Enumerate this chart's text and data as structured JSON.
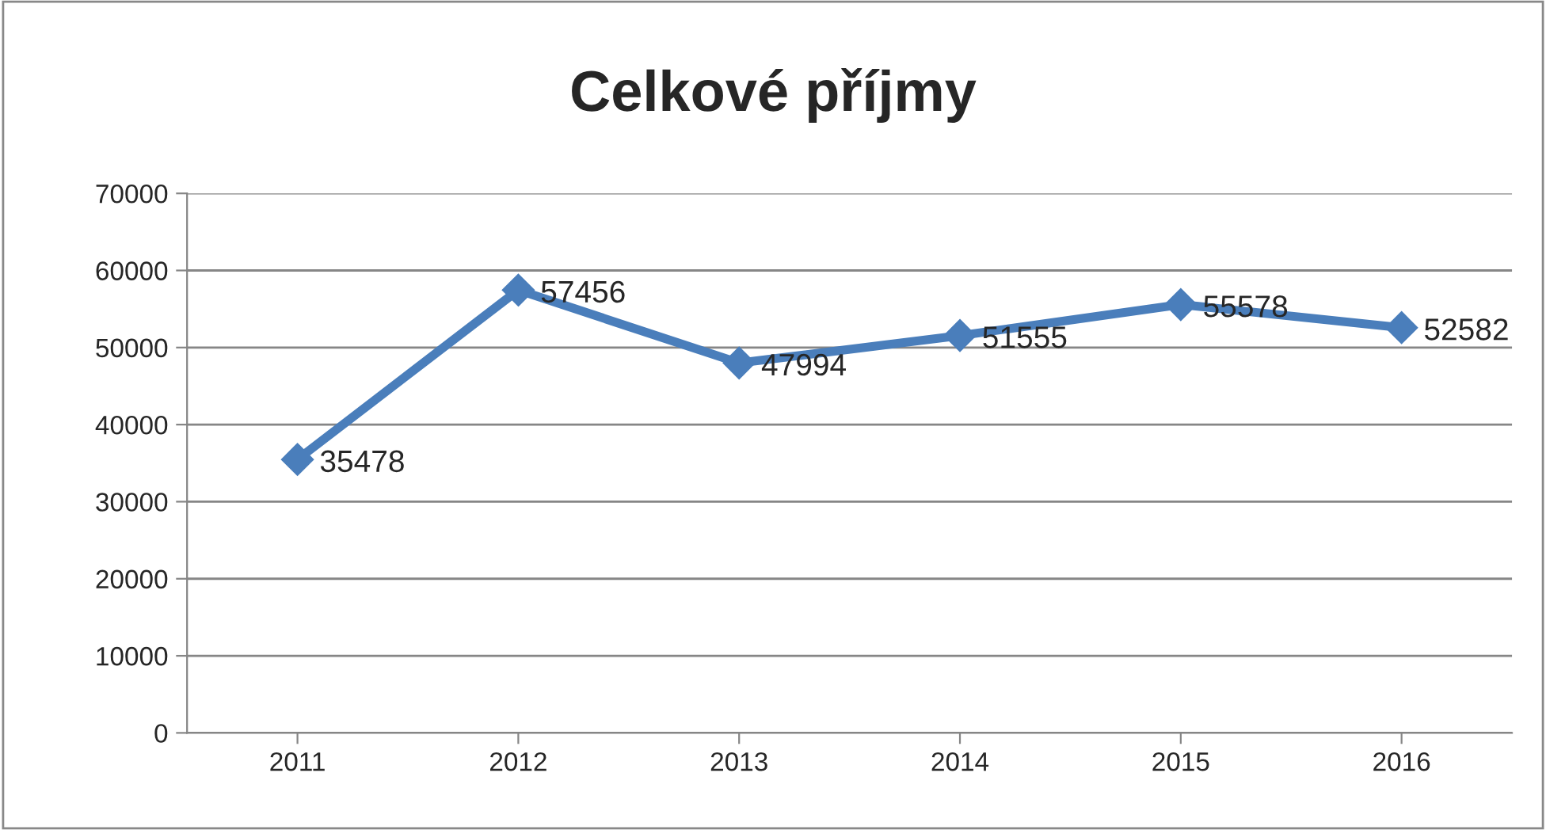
{
  "chart_data": {
    "type": "line",
    "title": "Celkové příjmy",
    "categories": [
      "2011",
      "2012",
      "2013",
      "2014",
      "2015",
      "2016"
    ],
    "series": [
      {
        "color": "#4a7ebb",
        "values": [
          35478,
          57456,
          47994,
          51555,
          55578,
          52582
        ]
      }
    ],
    "ylim": [
      0,
      70000
    ],
    "yticks": [
      0,
      10000,
      20000,
      30000,
      40000,
      50000,
      60000,
      70000
    ],
    "grid": "y",
    "legend": false,
    "marker": "diamond",
    "line_style": "solid",
    "data_labels": true
  }
}
